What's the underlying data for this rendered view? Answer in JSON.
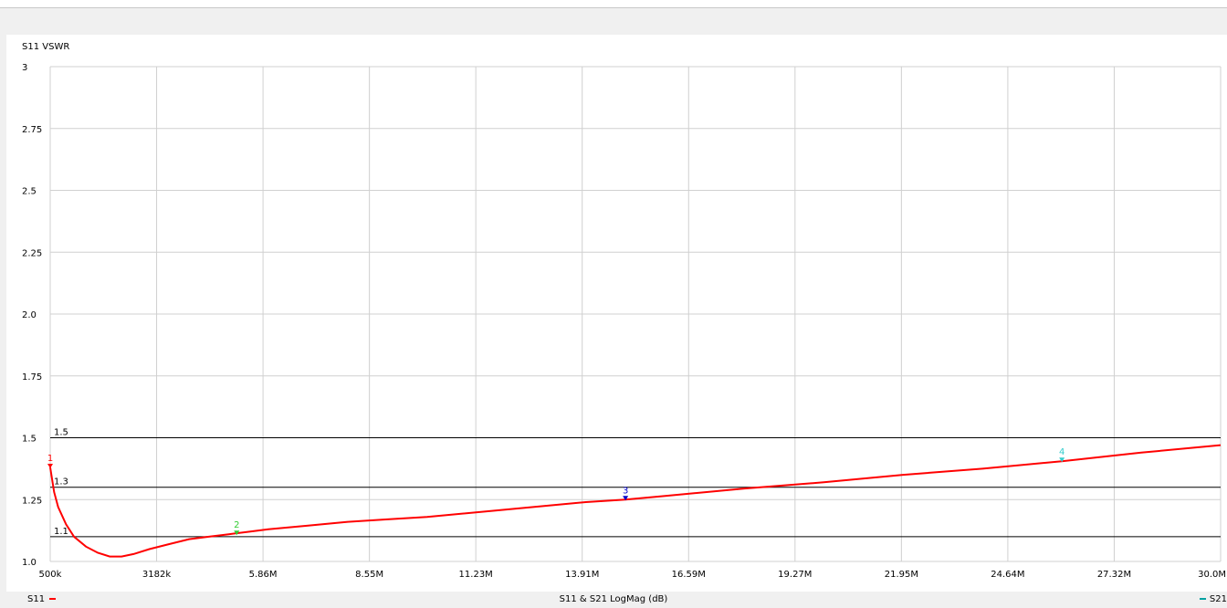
{
  "window": {
    "chart_title": "S11 VSWR",
    "bottom_title": "S11 & S21 LogMag (dB)",
    "legend_left": "S11",
    "legend_right": "S21"
  },
  "colors": {
    "trace": "#ff0000",
    "grid": "#d0d0d0",
    "reference_lines": "#000000",
    "marker_1": "#ff0000",
    "marker_2": "#33cc33",
    "marker_3": "#0000cc",
    "marker_4": "#33cccc",
    "s21_legend": "#00a0a0"
  },
  "chart_data": {
    "type": "line",
    "title": "S11 VSWR",
    "xlabel": "",
    "ylabel": "",
    "x_unit": "Hz",
    "xlim": [
      500000,
      30000000
    ],
    "ylim": [
      1.0,
      3.0
    ],
    "grid": true,
    "x_ticks": [
      {
        "value": 500000,
        "label": "500k"
      },
      {
        "value": 3182000,
        "label": "3182k"
      },
      {
        "value": 5860000,
        "label": "5.86M"
      },
      {
        "value": 8550000,
        "label": "8.55M"
      },
      {
        "value": 11230000,
        "label": "11.23M"
      },
      {
        "value": 13910000,
        "label": "13.91M"
      },
      {
        "value": 16590000,
        "label": "16.59M"
      },
      {
        "value": 19270000,
        "label": "19.27M"
      },
      {
        "value": 21950000,
        "label": "21.95M"
      },
      {
        "value": 24640000,
        "label": "24.64M"
      },
      {
        "value": 27320000,
        "label": "27.32M"
      },
      {
        "value": 30000000,
        "label": "30.0M"
      }
    ],
    "y_ticks": [
      {
        "value": 1.0,
        "label": "1.0"
      },
      {
        "value": 1.25,
        "label": "1.25"
      },
      {
        "value": 1.5,
        "label": "1.5"
      },
      {
        "value": 1.75,
        "label": "1.75"
      },
      {
        "value": 2.0,
        "label": "2.0"
      },
      {
        "value": 2.25,
        "label": "2.25"
      },
      {
        "value": 2.5,
        "label": "2.5"
      },
      {
        "value": 2.75,
        "label": "2.75"
      },
      {
        "value": 3.0,
        "label": "3"
      }
    ],
    "reference_lines": [
      {
        "value": 1.5,
        "label": "1.5"
      },
      {
        "value": 1.3,
        "label": "1.3"
      },
      {
        "value": 1.1,
        "label": "1.1"
      }
    ],
    "series": [
      {
        "name": "S11",
        "x": [
          500000,
          600000,
          700000,
          900000,
          1100000,
          1400000,
          1700000,
          2000000,
          2300000,
          2600000,
          3000000,
          3500000,
          4000000,
          4500000,
          5000000,
          5500000,
          6000000,
          7000000,
          8000000,
          9000000,
          10000000,
          12000000,
          14000000,
          15000000,
          16000000,
          18000000,
          20000000,
          22000000,
          24000000,
          26000000,
          28000000,
          30000000
        ],
        "y": [
          1.38,
          1.28,
          1.22,
          1.15,
          1.1,
          1.06,
          1.035,
          1.02,
          1.02,
          1.03,
          1.05,
          1.07,
          1.09,
          1.1,
          1.11,
          1.12,
          1.13,
          1.145,
          1.16,
          1.17,
          1.18,
          1.21,
          1.24,
          1.25,
          1.265,
          1.295,
          1.32,
          1.35,
          1.375,
          1.405,
          1.44,
          1.47
        ]
      }
    ],
    "markers": [
      {
        "id": "1",
        "x": 500000,
        "y": 1.38
      },
      {
        "id": "2",
        "x": 5200000,
        "y": 1.11
      },
      {
        "id": "3",
        "x": 15000000,
        "y": 1.25
      },
      {
        "id": "4",
        "x": 26000000,
        "y": 1.405
      }
    ]
  }
}
